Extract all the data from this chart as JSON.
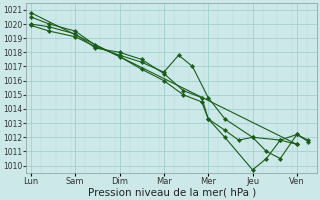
{
  "background_color": "#cce8e8",
  "grid_color": "#99cccc",
  "line_color": "#1a5c1a",
  "marker_color": "#1a5c1a",
  "xlabel": "Pression niveau de la mer( hPa )",
  "xlabel_fontsize": 7.5,
  "ylim": [
    1009.5,
    1021.5
  ],
  "yticks": [
    1010,
    1011,
    1012,
    1013,
    1014,
    1015,
    1016,
    1017,
    1018,
    1019,
    1020,
    1021
  ],
  "xtick_labels": [
    "Lun",
    "Sam",
    "Dim",
    "Mar",
    "Mer",
    "Jeu",
    "Ven"
  ],
  "xtick_positions": [
    0,
    48,
    96,
    144,
    192,
    240,
    288
  ],
  "xlim": [
    -5,
    310
  ],
  "lines": [
    {
      "x": [
        0,
        288
      ],
      "y": [
        1020.8,
        1011.5
      ]
    },
    {
      "x": [
        0,
        20,
        48,
        70,
        96,
        120,
        144,
        160,
        175,
        192,
        210,
        240,
        270,
        288
      ],
      "y": [
        1019.9,
        1019.5,
        1019.1,
        1018.4,
        1017.8,
        1017.3,
        1016.6,
        1017.8,
        1017.0,
        1014.8,
        1013.3,
        1012.0,
        1011.8,
        1011.5
      ]
    },
    {
      "x": [
        0,
        20,
        48,
        70,
        96,
        120,
        144,
        165,
        185,
        192,
        210,
        240,
        255,
        270,
        288,
        300
      ],
      "y": [
        1020.0,
        1019.8,
        1019.3,
        1018.3,
        1018.0,
        1017.5,
        1016.5,
        1015.3,
        1014.8,
        1013.3,
        1012.0,
        1009.7,
        1010.5,
        1011.8,
        1012.2,
        1011.8
      ]
    },
    {
      "x": [
        0,
        20,
        48,
        70,
        96,
        120,
        144,
        165,
        185,
        192,
        210,
        225,
        240,
        255,
        270,
        288,
        300
      ],
      "y": [
        1020.5,
        1020.0,
        1019.5,
        1018.5,
        1017.7,
        1016.8,
        1016.0,
        1015.0,
        1014.5,
        1013.3,
        1012.5,
        1011.8,
        1012.0,
        1011.0,
        1010.5,
        1012.2,
        1011.7
      ]
    }
  ]
}
